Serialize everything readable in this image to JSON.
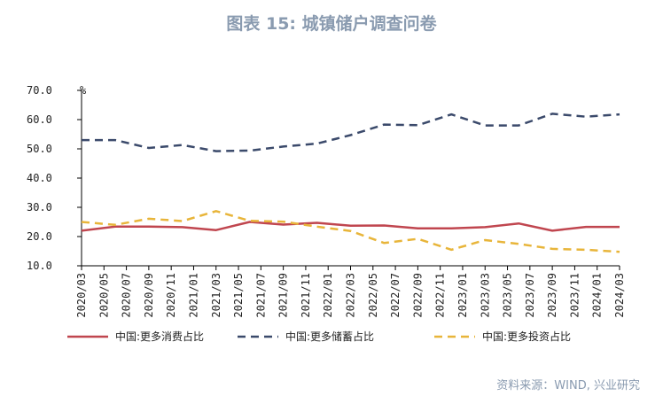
{
  "page": {
    "title": "图表 15: 城镇储户调查问卷",
    "source": "资料来源：WIND, 兴业研究"
  },
  "chart_data": {
    "type": "line",
    "title": "图表 15: 城镇储户调查问卷",
    "ylabel": "%",
    "ylim": [
      10,
      70
    ],
    "yticks": [
      "70.0",
      "60.0",
      "50.0",
      "40.0",
      "30.0",
      "20.0",
      "10.0"
    ],
    "grid": false,
    "legend_position": "bottom",
    "categories": [
      "2020/03",
      "2020/05",
      "2020/07",
      "2020/09",
      "2020/11",
      "2021/01",
      "2021/03",
      "2021/05",
      "2021/07",
      "2021/09",
      "2021/11",
      "2022/01",
      "2022/03",
      "2022/05",
      "2022/07",
      "2022/09",
      "2022/11",
      "2023/01",
      "2023/03",
      "2023/05",
      "2023/07",
      "2023/09",
      "2023/11",
      "2024/01",
      "2024/03"
    ],
    "x": [
      "2020/03",
      "2020/06",
      "2020/09",
      "2020/12",
      "2021/03",
      "2021/06",
      "2021/09",
      "2021/12",
      "2022/03",
      "2022/06",
      "2022/09",
      "2022/12",
      "2023/03",
      "2023/06",
      "2023/09",
      "2023/12",
      "2024/03"
    ],
    "series": [
      {
        "name": "中国:更多消费占比",
        "color": "#c0464f",
        "dash": "solid",
        "values": [
          22.0,
          23.4,
          23.4,
          23.2,
          22.2,
          25.0,
          24.1,
          24.7,
          23.7,
          23.8,
          22.8,
          22.8,
          23.2,
          24.5,
          22.0,
          23.3,
          23.3
        ]
      },
      {
        "name": "中国:更多储蓄占比",
        "color": "#3b4a6b",
        "dash": "dashed",
        "values": [
          53.0,
          53.0,
          50.3,
          51.3,
          49.2,
          49.4,
          50.8,
          51.8,
          54.7,
          58.3,
          58.1,
          61.8,
          58.0,
          58.0,
          62.0,
          61.0,
          61.8
        ]
      },
      {
        "name": "中国:更多投资占比",
        "color": "#e8b53a",
        "dash": "dashed",
        "values": [
          25.0,
          24.0,
          26.1,
          25.3,
          28.7,
          25.4,
          25.1,
          23.4,
          21.9,
          17.8,
          19.2,
          15.5,
          18.8,
          17.5,
          15.8,
          15.5,
          14.8
        ]
      }
    ]
  }
}
